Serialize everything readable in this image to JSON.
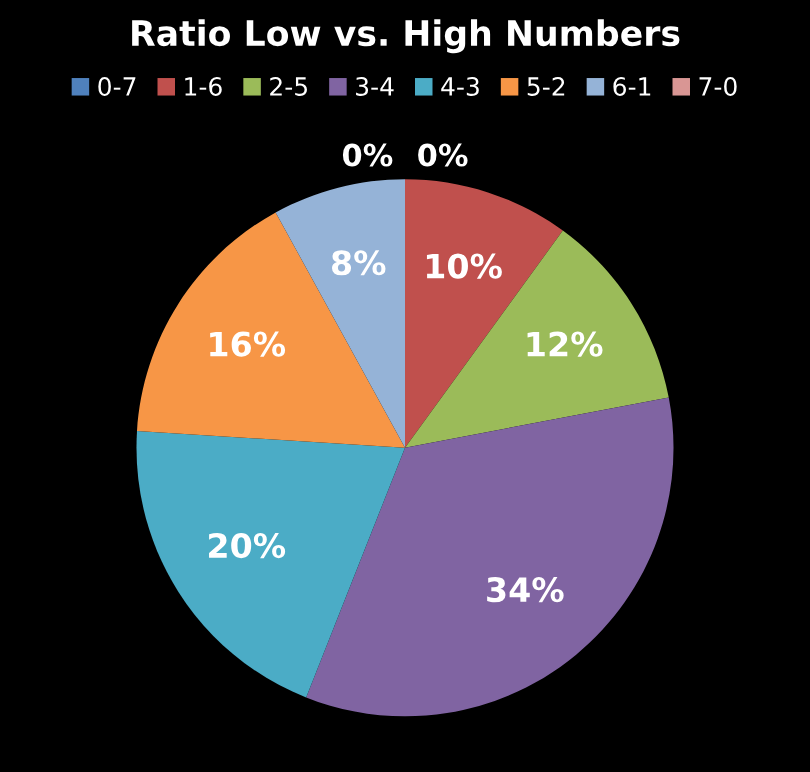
{
  "chart_data": {
    "type": "pie",
    "title": "Ratio Low vs. High Numbers",
    "categories": [
      "0-7",
      "1-6",
      "2-5",
      "3-4",
      "4-3",
      "5-2",
      "6-1",
      "7-0"
    ],
    "values": [
      0,
      10,
      12,
      34,
      20,
      16,
      8,
      0
    ],
    "colors": [
      "#4f81bd",
      "#c0504d",
      "#9bbb59",
      "#8064a2",
      "#4bacc6",
      "#f79646",
      "#95b3d7",
      "#d99694"
    ],
    "value_labels": [
      "0%",
      "10%",
      "12%",
      "34%",
      "20%",
      "16%",
      "8%",
      "0%"
    ],
    "legend": "top"
  }
}
